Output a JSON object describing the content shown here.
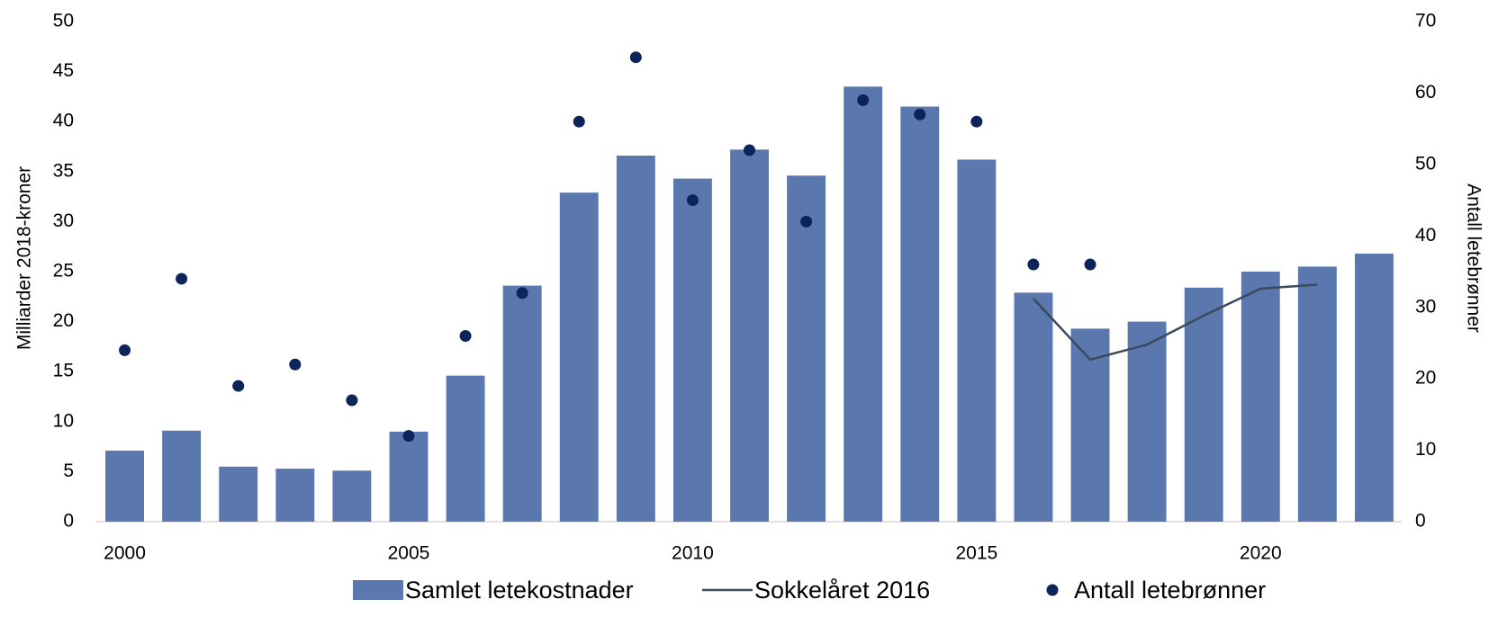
{
  "chart_data": {
    "type": "bar",
    "y_label": "Milliarder 2018-kroner",
    "y2_label": "Antall letebrønner",
    "x": [
      2000,
      2001,
      2002,
      2003,
      2004,
      2005,
      2006,
      2007,
      2008,
      2009,
      2010,
      2011,
      2012,
      2013,
      2014,
      2015,
      2016,
      2017,
      2018,
      2019,
      2020,
      2021,
      2022
    ],
    "xlim": [
      1999.5,
      2022.5
    ],
    "xticks": [
      2000,
      2005,
      2010,
      2015,
      2020
    ],
    "ylim": [
      0,
      50
    ],
    "yticks": [
      0,
      5,
      10,
      15,
      20,
      25,
      30,
      35,
      40,
      45,
      50
    ],
    "y2lim": [
      0,
      70
    ],
    "y2ticks": [
      0,
      10,
      20,
      30,
      40,
      50,
      60,
      70
    ],
    "grid": false,
    "legend": "bottom",
    "series": [
      {
        "name": "Samlet letekostnader",
        "type": "bar",
        "color": "#5b78ae",
        "values": [
          7.1,
          9.1,
          5.5,
          5.3,
          5.1,
          9.0,
          14.6,
          23.6,
          32.9,
          36.6,
          34.3,
          37.2,
          34.6,
          43.5,
          41.5,
          36.2,
          22.9,
          19.3,
          20.0,
          23.4,
          25.0,
          25.5,
          26.8
        ]
      },
      {
        "name": "Sokkelåret 2016",
        "type": "line",
        "color": "#3a4a5c",
        "values": [
          null,
          null,
          null,
          null,
          null,
          null,
          null,
          null,
          null,
          null,
          null,
          null,
          null,
          null,
          null,
          null,
          22.3,
          16.2,
          17.7,
          20.6,
          23.3,
          23.7,
          null
        ]
      },
      {
        "name": "Antall letebrønner",
        "type": "scatter",
        "color": "#0c2459",
        "axis": "y2",
        "values": [
          24,
          34,
          19,
          22,
          17,
          12,
          26,
          32,
          56,
          65,
          45,
          52,
          42,
          59,
          57,
          56,
          36,
          36,
          null,
          null,
          null,
          null,
          null
        ]
      }
    ]
  }
}
